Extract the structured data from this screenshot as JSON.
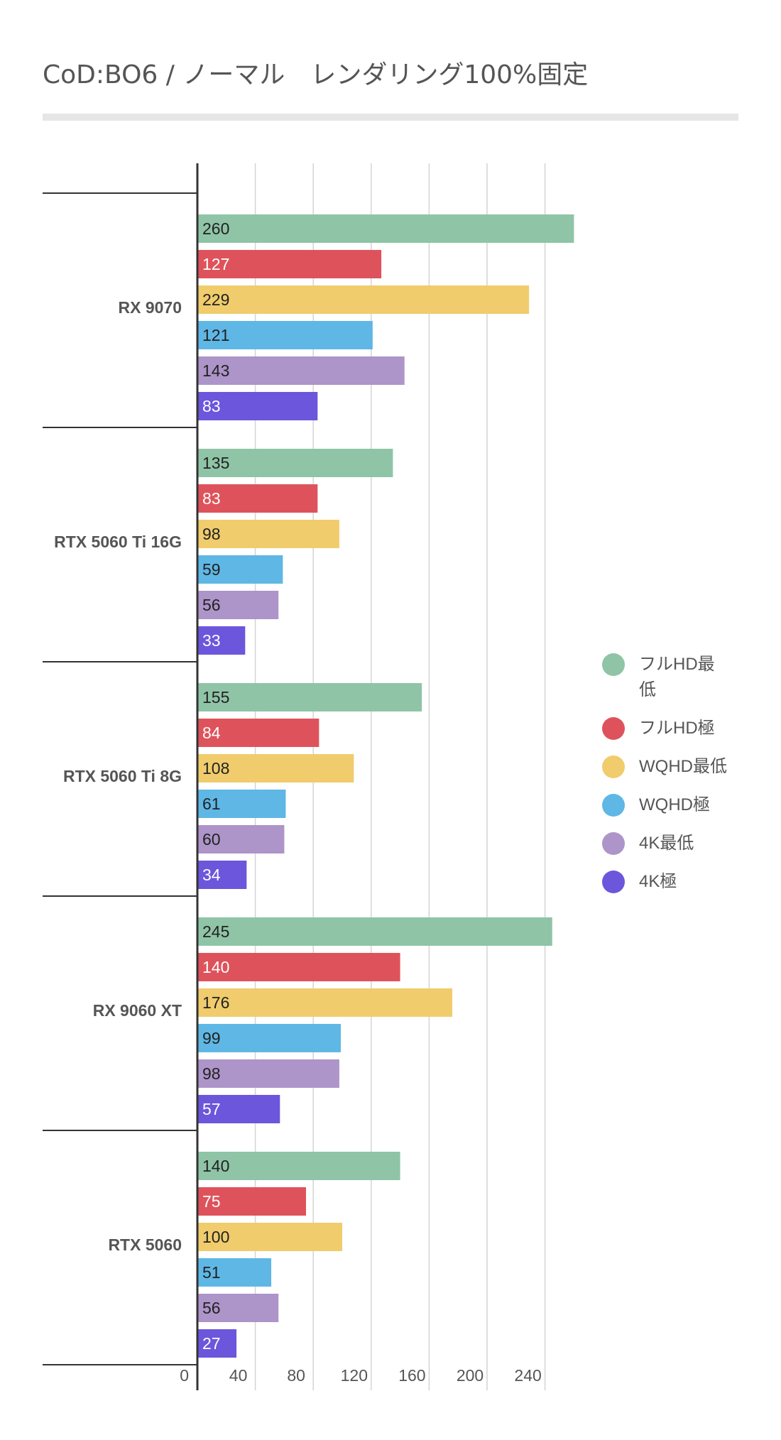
{
  "title": "CoD:BO6 /  ノーマル　レンダリング100%固定",
  "chart_data": {
    "type": "bar",
    "orientation": "horizontal",
    "title": "CoD:BO6 /  ノーマル　レンダリング100%固定",
    "categories": [
      "RX 9070",
      "RTX 5060 Ti 16G",
      "RTX 5060 Ti 8G",
      "RX 9060 XT",
      "RTX 5060"
    ],
    "series": [
      {
        "name": "フルHD最低",
        "color": "#8fc4a7",
        "label_color": "#222222",
        "values": [
          260,
          135,
          155,
          245,
          140
        ]
      },
      {
        "name": "フルHD極",
        "color": "#de535b",
        "label_color": "#ffffff",
        "values": [
          127,
          83,
          84,
          140,
          75
        ]
      },
      {
        "name": "WQHD最低",
        "color": "#f0cc6c",
        "label_color": "#222222",
        "values": [
          229,
          98,
          108,
          176,
          100
        ]
      },
      {
        "name": "WQHD極",
        "color": "#5fb7e5",
        "label_color": "#222222",
        "values": [
          121,
          59,
          61,
          99,
          51
        ]
      },
      {
        "name": "4K最低",
        "color": "#ad94c9",
        "label_color": "#222222",
        "values": [
          143,
          56,
          60,
          98,
          56
        ]
      },
      {
        "name": "4K極",
        "color": "#6c56dc",
        "label_color": "#ffffff",
        "values": [
          83,
          33,
          34,
          57,
          27
        ]
      }
    ],
    "x_ticks": [
      "0",
      "40",
      "80",
      "120",
      "160",
      "200",
      "240"
    ],
    "xlim": [
      0,
      280
    ],
    "xlabel": "",
    "ylabel": "",
    "grid": true,
    "legend_position": "right"
  }
}
